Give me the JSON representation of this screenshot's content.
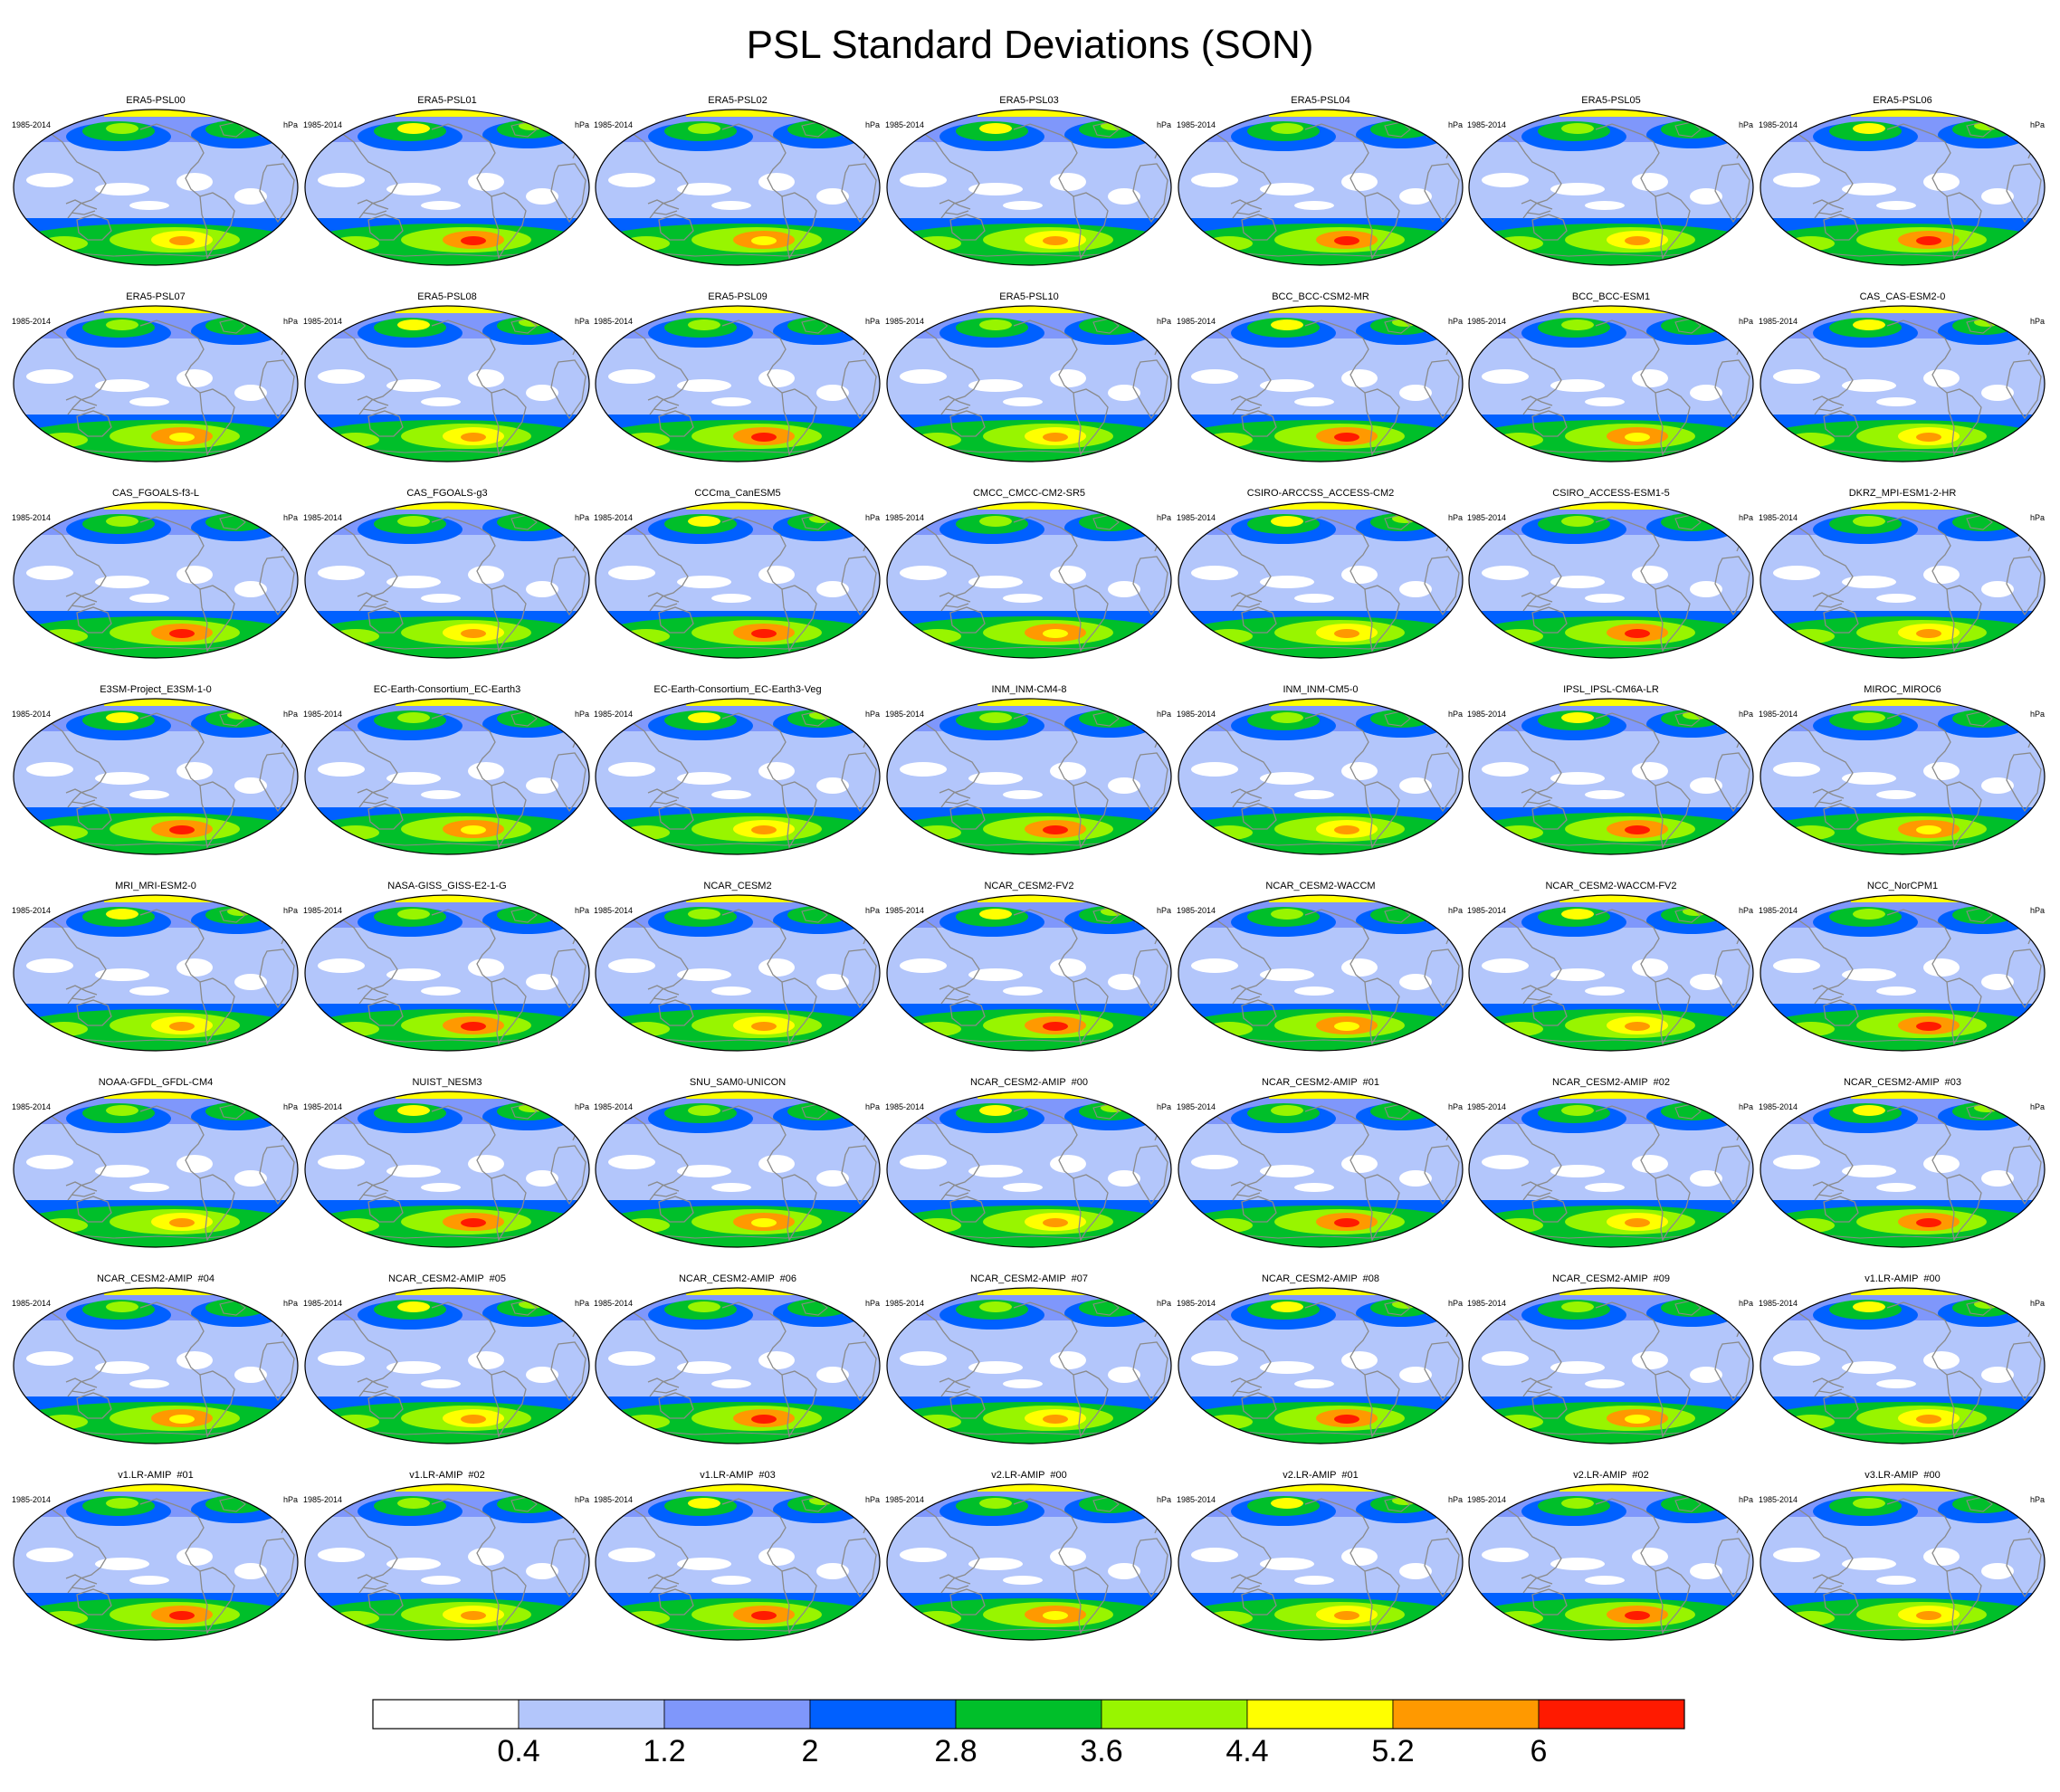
{
  "title": "PSL Standard Deviations (SON)",
  "period_label": "1985-2014",
  "units_label": "hPa",
  "panels": [
    "ERA5-PSL00",
    "ERA5-PSL01",
    "ERA5-PSL02",
    "ERA5-PSL03",
    "ERA5-PSL04",
    "ERA5-PSL05",
    "ERA5-PSL06",
    "ERA5-PSL07",
    "ERA5-PSL08",
    "ERA5-PSL09",
    "ERA5-PSL10",
    "BCC_BCC-CSM2-MR",
    "BCC_BCC-ESM1",
    "CAS_CAS-ESM2-0",
    "CAS_FGOALS-f3-L",
    "CAS_FGOALS-g3",
    "CCCma_CanESM5",
    "CMCC_CMCC-CM2-SR5",
    "CSIRO-ARCCSS_ACCESS-CM2",
    "CSIRO_ACCESS-ESM1-5",
    "DKRZ_MPI-ESM1-2-HR",
    "E3SM-Project_E3SM-1-0",
    "EC-Earth-Consortium_EC-Earth3",
    "EC-Earth-Consortium_EC-Earth3-Veg",
    "INM_INM-CM4-8",
    "INM_INM-CM5-0",
    "IPSL_IPSL-CM6A-LR",
    "MIROC_MIROC6",
    "MRI_MRI-ESM2-0",
    "NASA-GISS_GISS-E2-1-G",
    "NCAR_CESM2",
    "NCAR_CESM2-FV2",
    "NCAR_CESM2-WACCM",
    "NCAR_CESM2-WACCM-FV2",
    "NCC_NorCPM1",
    "NOAA-GFDL_GFDL-CM4",
    "NUIST_NESM3",
    "SNU_SAM0-UNICON",
    "NCAR_CESM2-AMIP  #00",
    "NCAR_CESM2-AMIP  #01",
    "NCAR_CESM2-AMIP  #02",
    "NCAR_CESM2-AMIP  #03",
    "NCAR_CESM2-AMIP  #04",
    "NCAR_CESM2-AMIP  #05",
    "NCAR_CESM2-AMIP  #06",
    "NCAR_CESM2-AMIP  #07",
    "NCAR_CESM2-AMIP  #08",
    "NCAR_CESM2-AMIP  #09",
    "v1.LR-AMIP  #00",
    "v1.LR-AMIP  #01",
    "v1.LR-AMIP  #02",
    "v1.LR-AMIP  #03",
    "v2.LR-AMIP  #00",
    "v2.LR-AMIP  #01",
    "v2.LR-AMIP  #02",
    "v3.LR-AMIP  #00"
  ],
  "colorbar": {
    "colors": [
      "#ffffff",
      "#b3c6fb",
      "#7f97fb",
      "#0060ff",
      "#00bf2a",
      "#98f500",
      "#ffff00",
      "#ff9900",
      "#ff1a00"
    ],
    "labels": [
      "0.4",
      "1.2",
      "2",
      "2.8",
      "3.6",
      "4.4",
      "5.2",
      "6"
    ]
  },
  "map_colors": {
    "ocean": "#b3c6fb",
    "coastline": "#8a8a8a",
    "border": "#000000"
  }
}
